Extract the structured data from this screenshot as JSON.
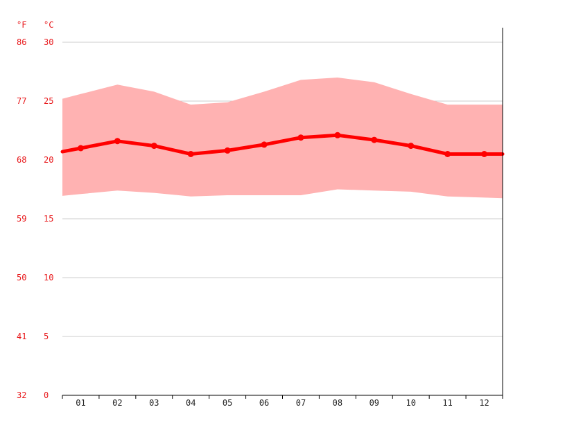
{
  "chart_data": {
    "type": "area",
    "unit_labels": {
      "fahrenheit": "°F",
      "celsius": "°C"
    },
    "y_ticks_celsius": [
      "30",
      "25",
      "20",
      "15",
      "10",
      "5",
      "0"
    ],
    "y_ticks_fahrenheit": [
      "86",
      "77",
      "68",
      "59",
      "50",
      "41",
      "32"
    ],
    "categories": [
      "01",
      "02",
      "03",
      "04",
      "05",
      "06",
      "07",
      "08",
      "09",
      "10",
      "11",
      "12"
    ],
    "ylim": [
      0,
      30
    ],
    "grid": true,
    "series": [
      {
        "role": "avg",
        "values": [
          21.0,
          21.6,
          21.2,
          20.5,
          20.8,
          21.3,
          21.9,
          22.1,
          21.7,
          21.2,
          20.5,
          20.5
        ],
        "color": "#ff0000"
      },
      {
        "role": "max",
        "values": [
          25.6,
          26.4,
          25.8,
          24.7,
          24.9,
          25.8,
          26.8,
          27.0,
          26.6,
          25.6,
          24.7,
          24.7
        ],
        "color": "#ffb2b2"
      },
      {
        "role": "min",
        "values": [
          17.1,
          17.4,
          17.2,
          16.9,
          17.0,
          17.0,
          17.0,
          17.5,
          17.4,
          17.3,
          16.9,
          16.8
        ],
        "color": "#ffb2b2"
      }
    ]
  }
}
